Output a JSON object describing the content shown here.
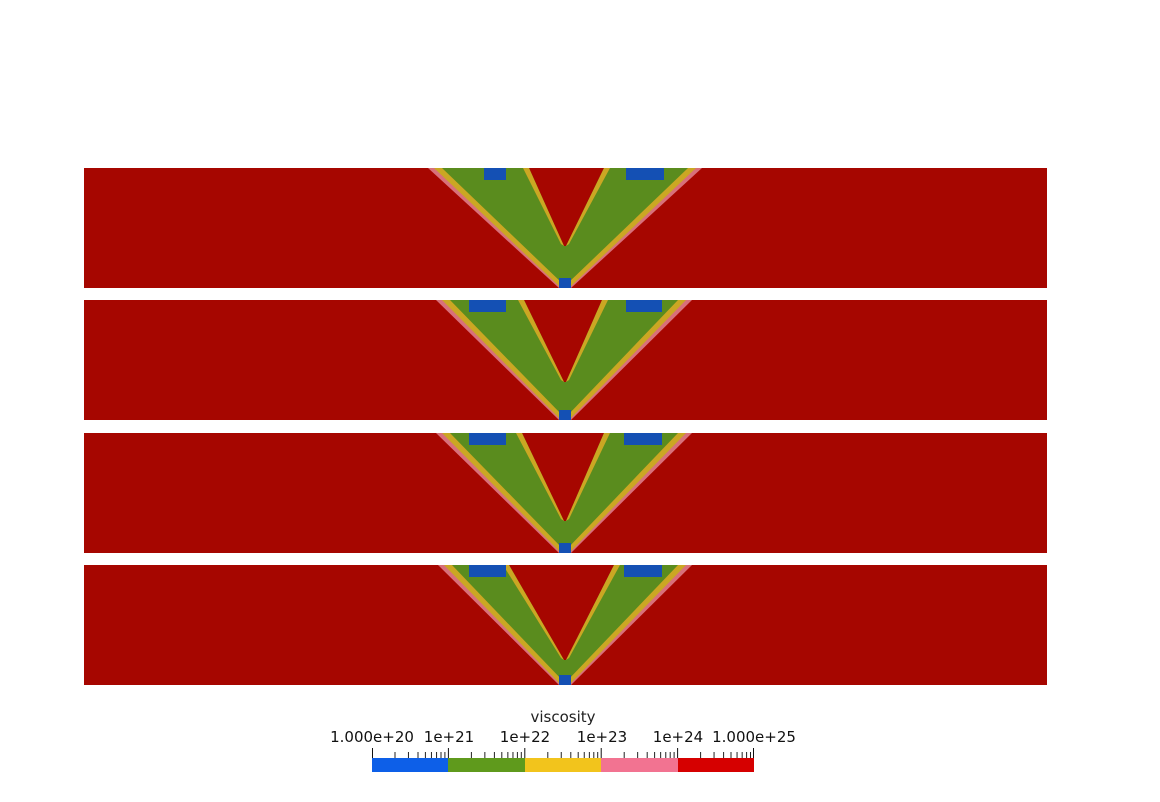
{
  "chart_data": {
    "type": "heatmap",
    "title": "",
    "field": "viscosity",
    "scale": "log",
    "range": [
      1e+20,
      1e+25
    ],
    "panels": 4,
    "panel_pattern": "V-shaped shear band",
    "colorbar": {
      "title": "viscosity",
      "tick_labels": [
        "1.000e+20",
        "1e+21",
        "1e+22",
        "1e+23",
        "1e+24",
        "1.000e+25"
      ],
      "tick_values": [
        1e+20,
        1e+21,
        1e+22,
        1e+23,
        1e+24,
        1e+25
      ],
      "bins": [
        {
          "range": [
            1e+20,
            1e+21
          ],
          "color": "#0d5fe8"
        },
        {
          "range": [
            1e+21,
            1e+22
          ],
          "color": "#5f9a1c"
        },
        {
          "range": [
            1e+22,
            1e+23
          ],
          "color": "#f2c41c"
        },
        {
          "range": [
            1e+23,
            1e+24
          ],
          "color": "#f27391"
        },
        {
          "range": [
            1e+24,
            1e+25
          ],
          "color": "#d60000"
        }
      ]
    },
    "colors": {
      "background": "#a60600",
      "band_green": "#5a8c1e",
      "band_yellow": "#cba723",
      "band_pink": "#d8707a",
      "band_blue": "#1450b4"
    }
  }
}
